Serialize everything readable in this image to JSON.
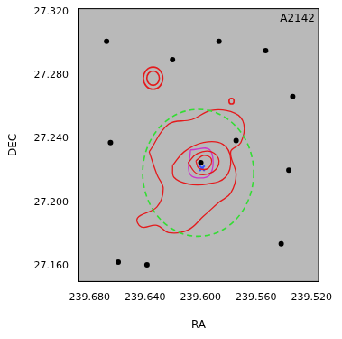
{
  "chart_data": {
    "type": "scatter",
    "x_label": "RA",
    "y_label": "DEC",
    "annotation": "A2142",
    "grid": false,
    "xlim": [
      239.688,
      239.515
    ],
    "xticks": [
      {
        "value": 239.68,
        "label": "239.680"
      },
      {
        "value": 239.64,
        "label": "239.640"
      },
      {
        "value": 239.6,
        "label": "239.600"
      },
      {
        "value": 239.56,
        "label": "239.560"
      },
      {
        "value": 239.52,
        "label": "239.520"
      }
    ],
    "ylim": [
      27.15,
      27.322
    ],
    "yticks": [
      {
        "value": 27.16,
        "label": "27.160"
      },
      {
        "value": 27.2,
        "label": "27.200"
      },
      {
        "value": 27.24,
        "label": "27.240"
      },
      {
        "value": 27.28,
        "label": "27.280"
      },
      {
        "value": 27.32,
        "label": "27.320"
      }
    ],
    "series": [
      {
        "type": "scatter",
        "marker": "circle",
        "color": "#000000",
        "x": [
          239.6386,
          239.5744,
          239.5998,
          239.6677,
          239.5531,
          239.5364,
          239.6593,
          239.5419,
          239.6202,
          239.5867,
          239.6649,
          239.5336
        ],
        "y": [
          27.1605,
          27.2388,
          27.2249,
          27.3014,
          27.2956,
          27.2202,
          27.1622,
          27.1738,
          27.2898,
          27.3014,
          27.2376,
          27.2666
        ]
      },
      {
        "type": "line",
        "line_style": "solid",
        "color": "#e41a1c",
        "x": [
          239.637,
          239.623,
          239.6062,
          239.5922,
          239.5755,
          239.5688,
          239.571,
          239.5783,
          239.5744,
          239.5783,
          239.5867,
          239.5978,
          239.609,
          239.623,
          239.6314,
          239.6426,
          239.6454,
          239.6314,
          239.6269,
          239.6314,
          239.637
        ],
        "y": [
          27.2318,
          27.2492,
          27.2521,
          27.2579,
          27.2562,
          27.2492,
          27.2376,
          27.2318,
          27.2173,
          27.2057,
          27.1999,
          27.1912,
          27.1825,
          27.1808,
          27.1854,
          27.1843,
          27.1901,
          27.197,
          27.2086,
          27.2173,
          27.2318
        ]
      },
      {
        "type": "line",
        "line_style": "solid",
        "color": "#e41a1c",
        "x": [
          239.6202,
          239.6118,
          239.5978,
          239.5839,
          239.5783,
          239.5822,
          239.595,
          239.609,
          239.6191,
          239.6202
        ],
        "y": [
          27.2231,
          27.2318,
          27.2376,
          27.2365,
          27.2272,
          27.2156,
          27.2115,
          27.2115,
          27.2156,
          27.2231
        ]
      },
      {
        "type": "line",
        "line_style": "solid",
        "color": "#e41a1c",
        "x": [
          239.609,
          239.6023,
          239.5922,
          239.5867,
          239.5911,
          239.6023,
          239.609
        ],
        "y": [
          27.2249,
          27.2307,
          27.2318,
          27.226,
          27.2191,
          27.2179,
          27.2249
        ]
      },
      {
        "type": "line",
        "line_style": "solid",
        "color": "#e41a1c",
        "x": [
          239.6034,
          239.5978,
          239.5922,
          239.5945,
          239.6012,
          239.6034
        ],
        "y": [
          27.226,
          27.2295,
          27.2272,
          27.2214,
          27.2214,
          27.226
        ]
      },
      {
        "type": "line",
        "line_style": "solid",
        "color": "#cc33cc",
        "x": [
          239.6073,
          239.5933,
          239.5933,
          239.6073,
          239.6073
        ],
        "y": [
          27.233,
          27.233,
          27.2173,
          27.2173,
          27.233
        ]
      },
      {
        "type": "scatter",
        "marker": "cross",
        "color": "#3355ff",
        "x": [
          239.5989
        ],
        "y": [
          27.2214
        ]
      }
    ],
    "circles": [
      {
        "x": 239.6017,
        "y": 27.2185,
        "r": 0.04,
        "color": "#33dd33",
        "line_style": "dashed"
      },
      {
        "x": 239.6342,
        "y": 27.2782,
        "r": 0.007,
        "color": "#e41a1c",
        "line_style": "solid"
      },
      {
        "x": 239.6342,
        "y": 27.2782,
        "r": 0.0045,
        "color": "#e41a1c",
        "line_style": "solid"
      },
      {
        "x": 239.5777,
        "y": 27.2637,
        "r": 0.0018,
        "color": "#e41a1c",
        "line_style": "solid"
      }
    ]
  }
}
